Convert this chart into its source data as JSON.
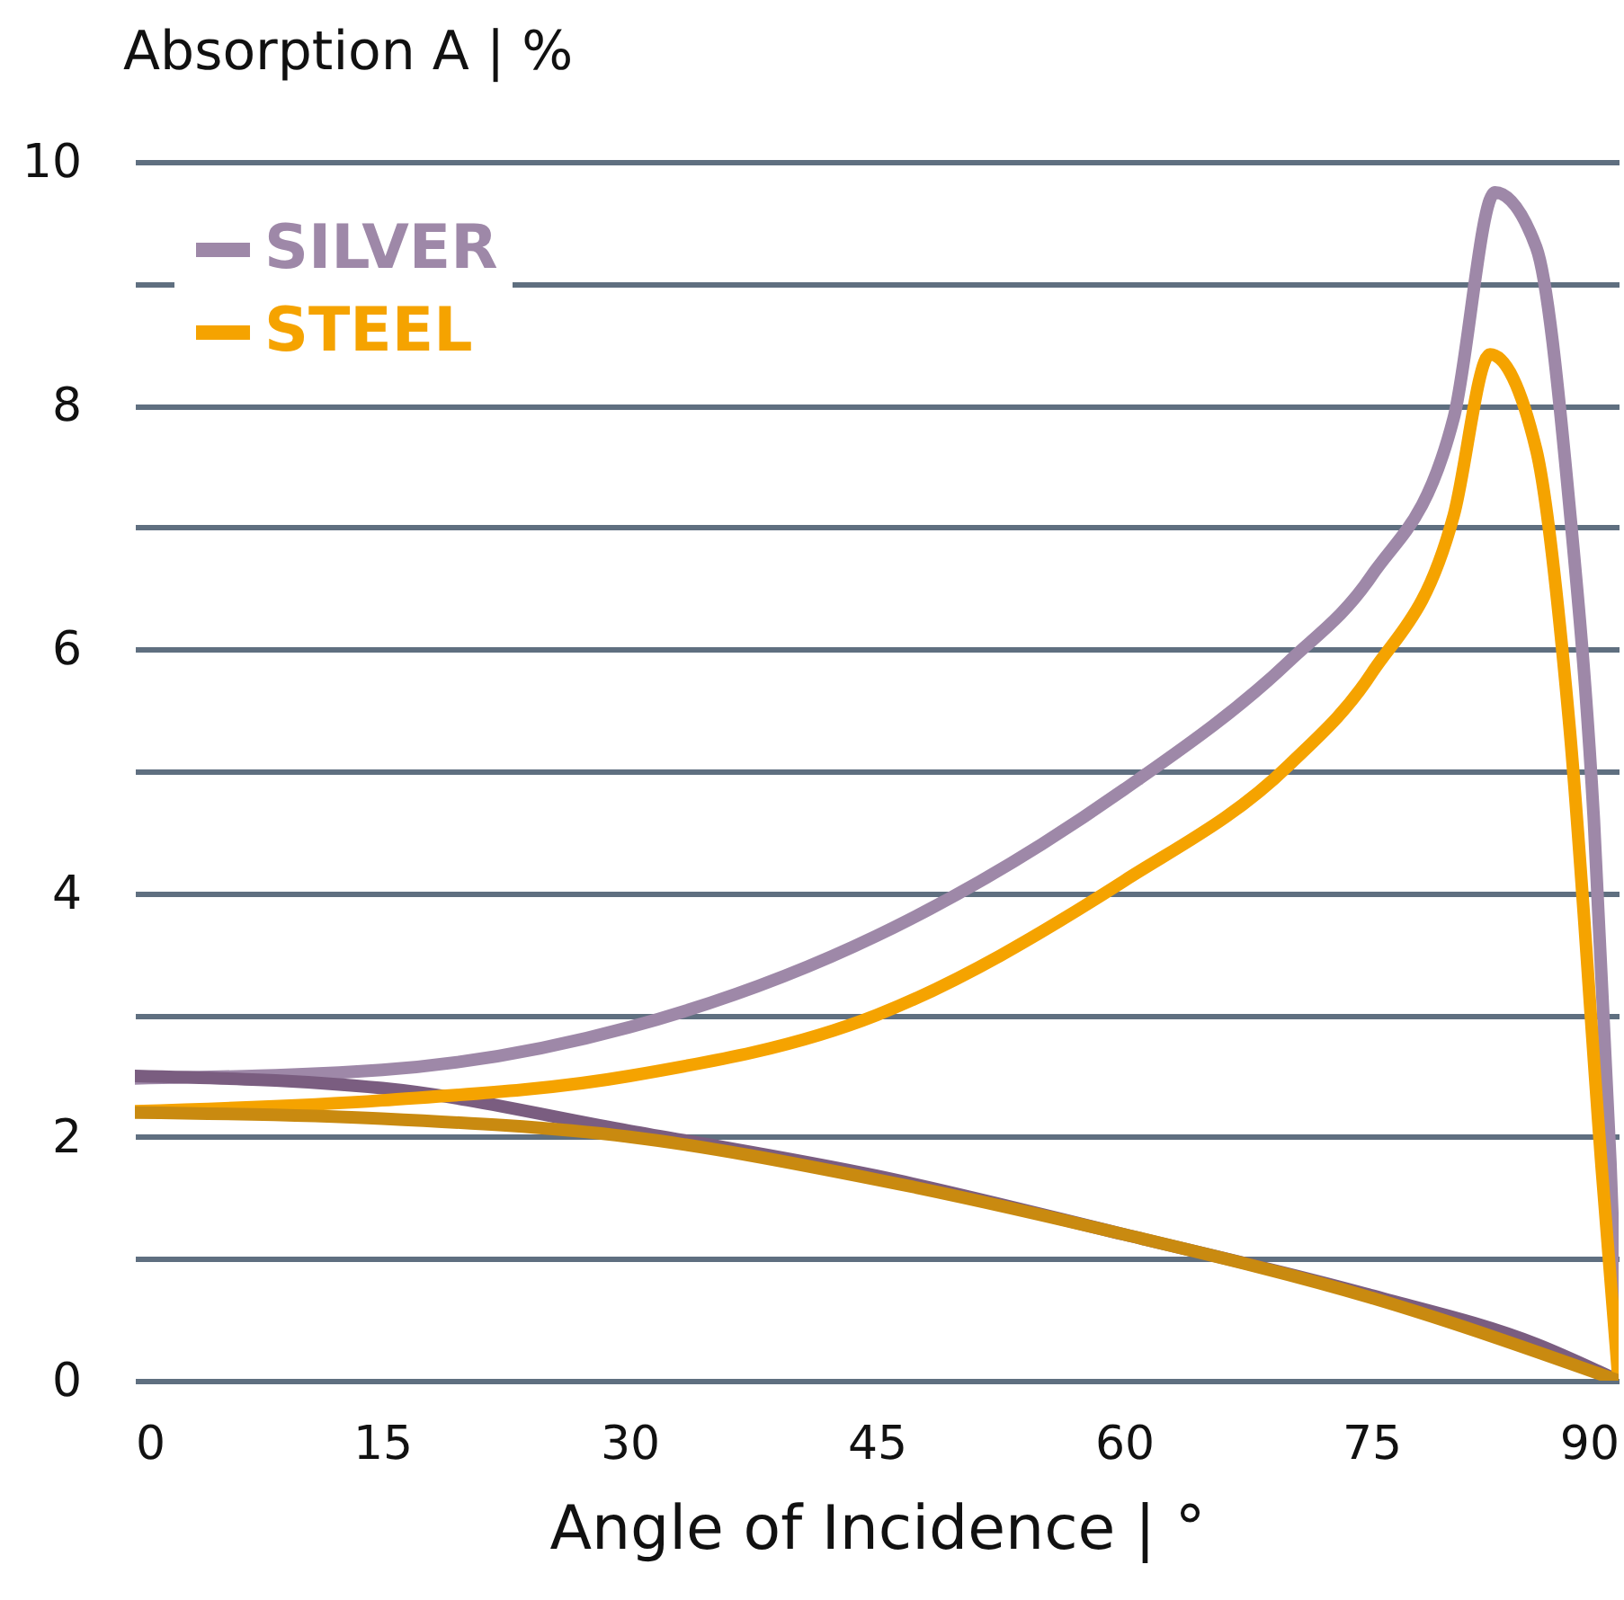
{
  "chart_data": {
    "type": "line",
    "xlabel": "Angle of Incidence | °",
    "ylabel": "Absorption A | %",
    "xlim": [
      0,
      90
    ],
    "xticks": [
      0,
      15,
      30,
      45,
      60,
      75,
      90
    ],
    "ylim": [
      0,
      10
    ],
    "yticks": [
      0,
      {
        "value": 1,
        "label": null
      },
      2,
      {
        "value": 3,
        "label": null
      },
      4,
      {
        "value": 5,
        "label": null
      },
      6,
      {
        "value": 7,
        "label": null
      },
      8,
      {
        "value": 9,
        "label": null
      },
      10
    ],
    "grid": "y",
    "legend": "top left",
    "line_style": "solid",
    "marker": "none",
    "series": [
      {
        "name": "SILVER",
        "color": "#9e88a8",
        "x": [
          0,
          15,
          30,
          45,
          55,
          60,
          70,
          75,
          80,
          82.5,
          85,
          87,
          88.5,
          89.5,
          90
        ],
        "values": [
          2.48,
          2.55,
          2.9,
          3.65,
          4.4,
          4.85,
          5.9,
          6.6,
          7.9,
          9.75,
          9.3,
          7.2,
          4.6,
          1.8,
          0
        ]
      },
      {
        "color": "#7a5d80",
        "x": [
          0,
          15,
          30,
          45,
          60,
          75,
          85,
          90
        ],
        "values": [
          2.5,
          2.4,
          2.05,
          1.68,
          1.2,
          0.7,
          0.3,
          0
        ]
      },
      {
        "name": "STEEL",
        "color": "#f5a300",
        "x": [
          0,
          15,
          30,
          45,
          60,
          70,
          75,
          80,
          82.2,
          85,
          87,
          89,
          90
        ],
        "values": [
          2.21,
          2.3,
          2.5,
          3.0,
          4.1,
          5.05,
          5.8,
          7.1,
          8.42,
          7.64,
          5.4,
          1.7,
          0
        ]
      },
      {
        "color": "#c98a10",
        "x": [
          0,
          15,
          30,
          45,
          60,
          75,
          90
        ],
        "values": [
          2.2,
          2.15,
          2.0,
          1.65,
          1.2,
          0.68,
          0
        ]
      }
    ]
  }
}
